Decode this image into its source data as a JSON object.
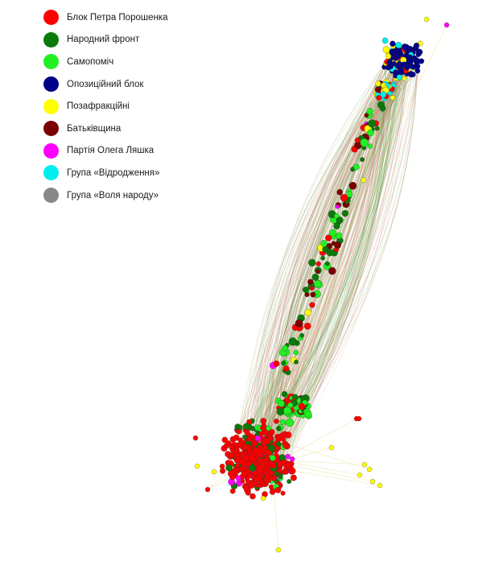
{
  "legend": {
    "items": [
      {
        "label": "Блок Петра Порошенка",
        "color": "#ff0000"
      },
      {
        "label": "Народний фронт",
        "color": "#0a7a0a"
      },
      {
        "label": "Самопоміч",
        "color": "#22f022"
      },
      {
        "label": "Опозиційний блок",
        "color": "#000088"
      },
      {
        "label": "Позафракційні",
        "color": "#ffff00"
      },
      {
        "label": "Батьківщина",
        "color": "#7a0000"
      },
      {
        "label": "Партія Олега Ляшка",
        "color": "#ff00ff"
      },
      {
        "label": "Група «Відродження»",
        "color": "#00eeee"
      },
      {
        "label": "Група «Воля народу»",
        "color": "#888888"
      }
    ]
  }
}
